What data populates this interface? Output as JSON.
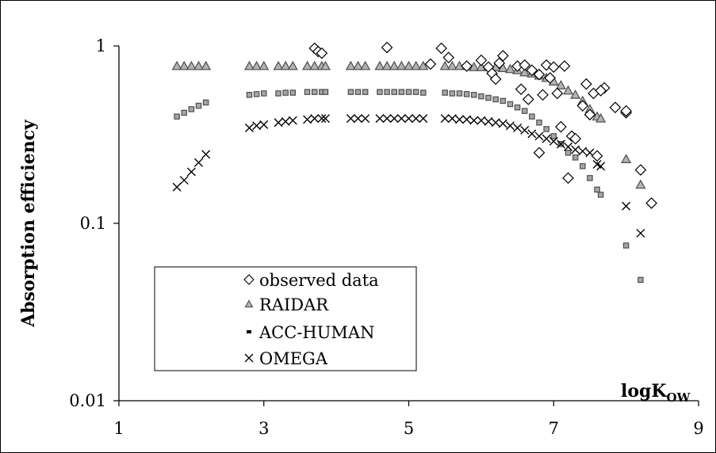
{
  "chart_data": {
    "type": "scatter",
    "title": "",
    "ylabel": "Absorption efficiency",
    "xlabel": {
      "main": "logK",
      "sub": "OW"
    },
    "xlim": [
      1,
      9
    ],
    "ylim": [
      0.01,
      1
    ],
    "yscale": "log",
    "xticks": [
      1,
      3,
      5,
      7,
      9
    ],
    "yticks": [
      {
        "value": 1,
        "label": "1"
      },
      {
        "value": 0.1,
        "label": "0.1"
      },
      {
        "value": 0.01,
        "label": "0.01"
      }
    ],
    "grid": false,
    "legend_position": "lower-left",
    "series": [
      {
        "name": "observed data",
        "marker": "diamond",
        "color": "#000000",
        "fill": "#ffffff",
        "points": [
          [
            3.7,
            0.97
          ],
          [
            3.75,
            0.93
          ],
          [
            3.8,
            0.91
          ],
          [
            4.7,
            0.98
          ],
          [
            5.45,
            0.97
          ],
          [
            5.55,
            0.86
          ],
          [
            5.3,
            0.79
          ],
          [
            5.8,
            0.77
          ],
          [
            6.0,
            0.83
          ],
          [
            6.1,
            0.76
          ],
          [
            6.15,
            0.7
          ],
          [
            6.2,
            0.65
          ],
          [
            6.25,
            0.8
          ],
          [
            6.3,
            0.88
          ],
          [
            6.5,
            0.77
          ],
          [
            6.55,
            0.57
          ],
          [
            6.6,
            0.78
          ],
          [
            6.65,
            0.5
          ],
          [
            6.7,
            0.73
          ],
          [
            6.8,
            0.69
          ],
          [
            6.85,
            0.53
          ],
          [
            6.9,
            0.78
          ],
          [
            6.95,
            0.66
          ],
          [
            7.0,
            0.76
          ],
          [
            7.05,
            0.54
          ],
          [
            7.1,
            0.35
          ],
          [
            7.15,
            0.77
          ],
          [
            7.2,
            0.18
          ],
          [
            6.8,
            0.25
          ],
          [
            7.25,
            0.31
          ],
          [
            7.3,
            0.3
          ],
          [
            7.4,
            0.46
          ],
          [
            7.45,
            0.61
          ],
          [
            7.5,
            0.41
          ],
          [
            7.55,
            0.54
          ],
          [
            7.6,
            0.24
          ],
          [
            7.7,
            0.58
          ],
          [
            7.65,
            0.56
          ],
          [
            7.85,
            0.45
          ],
          [
            8.0,
            0.42
          ],
          [
            8.0,
            0.43
          ],
          [
            8.2,
            0.2
          ],
          [
            8.35,
            0.13
          ]
        ]
      },
      {
        "name": "RAIDAR",
        "marker": "triangle",
        "color": "#4d4d4d",
        "fill": "#b3b3b3",
        "points": [
          [
            1.8,
            0.77
          ],
          [
            1.9,
            0.77
          ],
          [
            2.0,
            0.77
          ],
          [
            2.1,
            0.77
          ],
          [
            2.2,
            0.77
          ],
          [
            2.8,
            0.77
          ],
          [
            2.9,
            0.77
          ],
          [
            3.0,
            0.77
          ],
          [
            3.2,
            0.77
          ],
          [
            3.3,
            0.77
          ],
          [
            3.4,
            0.77
          ],
          [
            3.6,
            0.77
          ],
          [
            3.7,
            0.77
          ],
          [
            3.8,
            0.77
          ],
          [
            3.85,
            0.77
          ],
          [
            4.2,
            0.77
          ],
          [
            4.3,
            0.77
          ],
          [
            4.4,
            0.77
          ],
          [
            4.6,
            0.77
          ],
          [
            4.7,
            0.77
          ],
          [
            4.8,
            0.77
          ],
          [
            4.9,
            0.77
          ],
          [
            5.0,
            0.77
          ],
          [
            5.1,
            0.77
          ],
          [
            5.2,
            0.77
          ],
          [
            5.5,
            0.77
          ],
          [
            5.6,
            0.77
          ],
          [
            5.7,
            0.77
          ],
          [
            5.8,
            0.77
          ],
          [
            5.9,
            0.76
          ],
          [
            6.0,
            0.76
          ],
          [
            6.1,
            0.76
          ],
          [
            6.2,
            0.76
          ],
          [
            6.3,
            0.75
          ],
          [
            6.4,
            0.74
          ],
          [
            6.5,
            0.73
          ],
          [
            6.6,
            0.71
          ],
          [
            6.7,
            0.7
          ],
          [
            6.8,
            0.68
          ],
          [
            6.9,
            0.66
          ],
          [
            7.0,
            0.63
          ],
          [
            7.1,
            0.6
          ],
          [
            7.2,
            0.56
          ],
          [
            7.3,
            0.53
          ],
          [
            7.4,
            0.49
          ],
          [
            7.5,
            0.44
          ],
          [
            7.6,
            0.4
          ],
          [
            7.65,
            0.39
          ],
          [
            8.0,
            0.23
          ],
          [
            8.2,
            0.165
          ]
        ]
      },
      {
        "name": "ACC-HUMAN",
        "marker": "square",
        "color": "#4d4d4d",
        "fill": "#a6a6a6",
        "points": [
          [
            1.8,
            0.4
          ],
          [
            1.9,
            0.42
          ],
          [
            2.0,
            0.44
          ],
          [
            2.1,
            0.46
          ],
          [
            2.2,
            0.48
          ],
          [
            2.8,
            0.53
          ],
          [
            2.9,
            0.535
          ],
          [
            3.0,
            0.54
          ],
          [
            3.2,
            0.54
          ],
          [
            3.3,
            0.545
          ],
          [
            3.4,
            0.545
          ],
          [
            3.6,
            0.55
          ],
          [
            3.7,
            0.55
          ],
          [
            3.8,
            0.55
          ],
          [
            3.85,
            0.55
          ],
          [
            4.2,
            0.55
          ],
          [
            4.3,
            0.55
          ],
          [
            4.4,
            0.55
          ],
          [
            4.6,
            0.55
          ],
          [
            4.7,
            0.55
          ],
          [
            4.8,
            0.55
          ],
          [
            4.9,
            0.55
          ],
          [
            5.0,
            0.55
          ],
          [
            5.1,
            0.55
          ],
          [
            5.2,
            0.545
          ],
          [
            5.5,
            0.545
          ],
          [
            5.6,
            0.54
          ],
          [
            5.7,
            0.54
          ],
          [
            5.8,
            0.535
          ],
          [
            5.9,
            0.53
          ],
          [
            6.0,
            0.52
          ],
          [
            6.1,
            0.51
          ],
          [
            6.2,
            0.5
          ],
          [
            6.3,
            0.49
          ],
          [
            6.4,
            0.47
          ],
          [
            6.5,
            0.45
          ],
          [
            6.6,
            0.43
          ],
          [
            6.7,
            0.4
          ],
          [
            6.8,
            0.37
          ],
          [
            6.9,
            0.34
          ],
          [
            7.0,
            0.31
          ],
          [
            7.1,
            0.28
          ],
          [
            7.2,
            0.25
          ],
          [
            7.3,
            0.235
          ],
          [
            7.4,
            0.21
          ],
          [
            7.5,
            0.18
          ],
          [
            7.6,
            0.155
          ],
          [
            7.65,
            0.145
          ],
          [
            8.0,
            0.075
          ],
          [
            8.2,
            0.048
          ]
        ]
      },
      {
        "name": "OMEGA",
        "marker": "cross",
        "color": "#000000",
        "fill": "none",
        "points": [
          [
            1.8,
            0.16
          ],
          [
            1.9,
            0.175
          ],
          [
            2.0,
            0.195
          ],
          [
            2.1,
            0.22
          ],
          [
            2.2,
            0.245
          ],
          [
            2.8,
            0.345
          ],
          [
            2.9,
            0.355
          ],
          [
            3.0,
            0.36
          ],
          [
            3.2,
            0.37
          ],
          [
            3.3,
            0.375
          ],
          [
            3.4,
            0.38
          ],
          [
            3.6,
            0.385
          ],
          [
            3.7,
            0.39
          ],
          [
            3.8,
            0.39
          ],
          [
            3.85,
            0.39
          ],
          [
            4.2,
            0.39
          ],
          [
            4.3,
            0.39
          ],
          [
            4.4,
            0.39
          ],
          [
            4.6,
            0.39
          ],
          [
            4.7,
            0.39
          ],
          [
            4.8,
            0.39
          ],
          [
            4.9,
            0.39
          ],
          [
            5.0,
            0.39
          ],
          [
            5.1,
            0.39
          ],
          [
            5.2,
            0.39
          ],
          [
            5.5,
            0.39
          ],
          [
            5.6,
            0.39
          ],
          [
            5.7,
            0.385
          ],
          [
            5.8,
            0.385
          ],
          [
            5.9,
            0.38
          ],
          [
            6.0,
            0.38
          ],
          [
            6.1,
            0.375
          ],
          [
            6.2,
            0.37
          ],
          [
            6.3,
            0.365
          ],
          [
            6.4,
            0.355
          ],
          [
            6.5,
            0.345
          ],
          [
            6.6,
            0.335
          ],
          [
            6.7,
            0.32
          ],
          [
            6.8,
            0.31
          ],
          [
            6.9,
            0.3
          ],
          [
            7.0,
            0.29
          ],
          [
            7.1,
            0.28
          ],
          [
            7.2,
            0.27
          ],
          [
            7.3,
            0.26
          ],
          [
            7.4,
            0.255
          ],
          [
            7.5,
            0.25
          ],
          [
            7.6,
            0.215
          ],
          [
            7.65,
            0.21
          ],
          [
            8.0,
            0.125
          ],
          [
            8.2,
            0.088
          ]
        ]
      }
    ]
  }
}
